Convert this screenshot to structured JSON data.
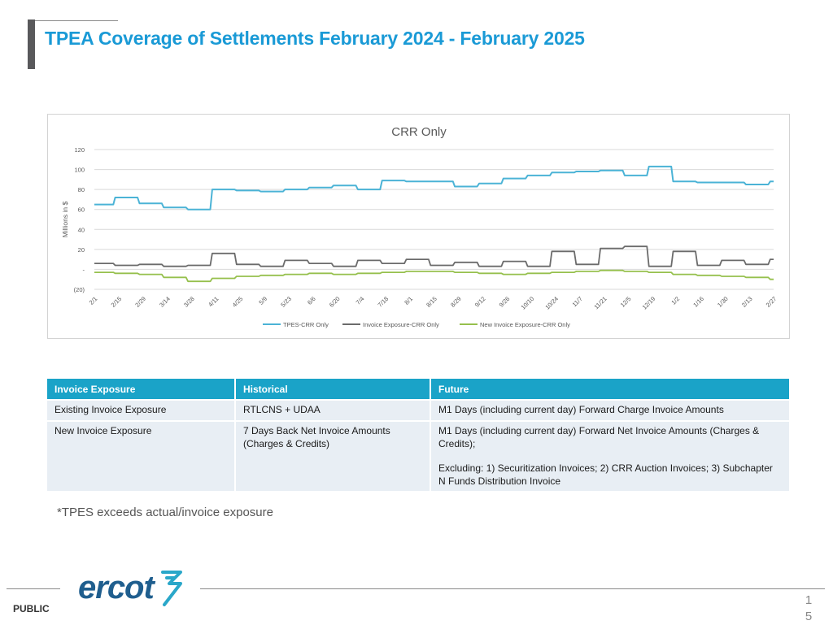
{
  "slide": {
    "title": "TPEA Coverage of Settlements February 2024 - February 2025",
    "footnote": "*TPES exceeds actual/invoice exposure",
    "public_label": "PUBLIC",
    "page_number_top": "1",
    "page_number_bottom": "5",
    "logo_text": "ercot"
  },
  "colors": {
    "title": "#1a9ad6",
    "tpes": "#4bb3d6",
    "invoice": "#6b6b6b",
    "new_invoice": "#96c04d",
    "table_header": "#1aa3c8",
    "table_row": "#e8eef4",
    "logo": "#1f5e8e",
    "logo_accent": "#2aa7c9"
  },
  "table": {
    "headers": [
      "Invoice Exposure",
      "Historical",
      "Future"
    ],
    "rows": [
      [
        "Existing Invoice Exposure",
        "RTLCNS + UDAA",
        "M1 Days (including current day) Forward Charge Invoice Amounts"
      ],
      [
        "New Invoice Exposure",
        "7 Days Back Net Invoice Amounts (Charges & Credits)",
        "M1 Days (including current day) Forward  Net Invoice Amounts (Charges & Credits);"
      ]
    ],
    "row2_future_note": "Excluding: 1) Securitization Invoices; 2) CRR Auction Invoices; 3) Subchapter N Funds Distribution Invoice"
  },
  "chart_data": {
    "type": "line",
    "title": "CRR Only",
    "ylabel": "Millions in $",
    "xlabel": "",
    "ylim": [
      -20,
      120
    ],
    "yticks": [
      120,
      100,
      80,
      60,
      40,
      20,
      0,
      -20
    ],
    "ytick_labels": [
      "120",
      "100",
      "80",
      "60",
      "40",
      "20",
      "-",
      "(20)"
    ],
    "grid": true,
    "legend_position": "bottom",
    "x": [
      "2/1",
      "2/15",
      "2/29",
      "3/14",
      "3/28",
      "4/11",
      "4/25",
      "5/9",
      "5/23",
      "6/6",
      "6/20",
      "7/4",
      "7/18",
      "8/1",
      "8/15",
      "8/29",
      "9/12",
      "9/26",
      "10/10",
      "10/24",
      "11/7",
      "11/21",
      "12/5",
      "12/19",
      "1/2",
      "1/16",
      "1/30",
      "2/13",
      "2/27"
    ],
    "series": [
      {
        "name": "TPES-CRR Only",
        "color": "#4bb3d6",
        "values": [
          65,
          72,
          66,
          62,
          60,
          80,
          79,
          78,
          80,
          82,
          84,
          80,
          89,
          88,
          88,
          83,
          86,
          91,
          94,
          97,
          98,
          99,
          94,
          103,
          88,
          87,
          87,
          85,
          88
        ]
      },
      {
        "name": "Invoice Exposure-CRR Only",
        "color": "#6b6b6b",
        "values": [
          6,
          4,
          5,
          3,
          4,
          16,
          5,
          3,
          9,
          6,
          3,
          9,
          6,
          10,
          4,
          7,
          3,
          8,
          3,
          18,
          5,
          21,
          23,
          3,
          18,
          4,
          9,
          5,
          10
        ]
      },
      {
        "name": "New Invoice Exposure-CRR Only",
        "color": "#96c04d",
        "values": [
          -3,
          -4,
          -5,
          -8,
          -12,
          -9,
          -7,
          -6,
          -5,
          -4,
          -5,
          -4,
          -3,
          -2,
          -2,
          -3,
          -4,
          -5,
          -4,
          -3,
          -2,
          -1,
          -2,
          -3,
          -5,
          -6,
          -7,
          -8,
          -10
        ]
      }
    ]
  }
}
